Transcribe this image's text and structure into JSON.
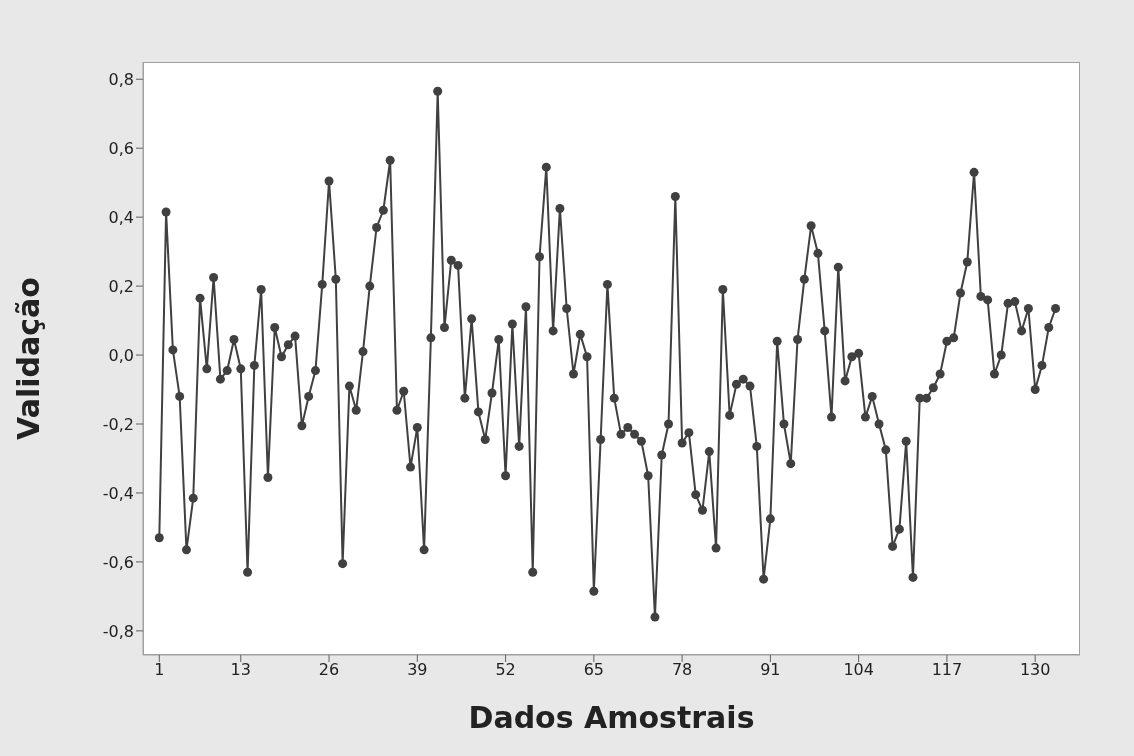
{
  "chart_data": {
    "type": "line",
    "xlabel": "Dados Amostrais",
    "ylabel": "Validação",
    "x": [
      1,
      2,
      3,
      4,
      5,
      6,
      7,
      8,
      9,
      10,
      11,
      12,
      13,
      14,
      15,
      16,
      17,
      18,
      19,
      20,
      21,
      22,
      23,
      24,
      25,
      26,
      27,
      28,
      29,
      30,
      31,
      32,
      33,
      34,
      35,
      36,
      37,
      38,
      39,
      40,
      41,
      42,
      43,
      44,
      45,
      46,
      47,
      48,
      49,
      50,
      51,
      52,
      53,
      54,
      55,
      56,
      57,
      58,
      59,
      60,
      61,
      62,
      63,
      64,
      65,
      66,
      67,
      68,
      69,
      70,
      71,
      72,
      73,
      74,
      75,
      76,
      77,
      78,
      79,
      80,
      81,
      82,
      83,
      84,
      85,
      86,
      87,
      88,
      89,
      90,
      91,
      92,
      93,
      94,
      95,
      96,
      97,
      98,
      99,
      100,
      101,
      102,
      103,
      104,
      105,
      106,
      107,
      108,
      109,
      110,
      111,
      112,
      113,
      114,
      115,
      116,
      117,
      118,
      119,
      120,
      121,
      122,
      123,
      124,
      125,
      126,
      127,
      128,
      129,
      130,
      131,
      132,
      133
    ],
    "series": [
      {
        "color": "#404040",
        "values": [
          -0.53,
          0.415,
          0.015,
          -0.12,
          -0.565,
          -0.415,
          0.165,
          -0.04,
          0.225,
          -0.07,
          -0.045,
          0.045,
          -0.04,
          -0.63,
          -0.03,
          0.19,
          -0.355,
          0.08,
          -0.005,
          0.03,
          0.055,
          -0.205,
          -0.12,
          -0.045,
          0.205,
          0.505,
          0.22,
          -0.605,
          -0.09,
          -0.16,
          0.01,
          0.2,
          0.37,
          0.42,
          0.565,
          -0.16,
          -0.105,
          -0.325,
          -0.21,
          -0.565,
          0.05,
          0.765,
          0.08,
          0.275,
          0.26,
          -0.125,
          0.105,
          -0.165,
          -0.245,
          -0.11,
          0.045,
          -0.35,
          0.09,
          -0.265,
          0.14,
          -0.63,
          0.285,
          0.545,
          0.07,
          0.425,
          0.135,
          -0.055,
          0.06,
          -0.005,
          -0.685,
          -0.245,
          0.205,
          -0.125,
          -0.23,
          -0.21,
          -0.23,
          -0.25,
          -0.35,
          -0.76,
          -0.29,
          -0.2,
          0.46,
          -0.255,
          -0.225,
          -0.405,
          -0.45,
          -0.28,
          -0.56,
          0.19,
          -0.175,
          -0.085,
          -0.07,
          -0.09,
          -0.265,
          -0.65,
          -0.475,
          0.04,
          -0.2,
          -0.315,
          0.045,
          0.22,
          0.375,
          0.295,
          0.07,
          -0.18,
          0.255,
          -0.075,
          -0.005,
          0.005,
          -0.18,
          -0.12,
          -0.2,
          -0.275,
          -0.555,
          -0.505,
          -0.25,
          -0.645,
          -0.125,
          -0.125,
          -0.095,
          -0.055,
          0.04,
          0.05,
          0.18,
          0.27,
          0.53,
          0.17,
          0.16,
          -0.055,
          0.0,
          0.15,
          0.155,
          0.07,
          0.135,
          -0.1,
          -0.03,
          0.08,
          0.135
        ]
      }
    ],
    "xlim": [
      -1.4,
      136.6
    ],
    "xticks": [
      1,
      13,
      26,
      39,
      52,
      65,
      78,
      91,
      104,
      117,
      130
    ],
    "ylim": [
      -0.87,
      0.85
    ],
    "yticks": [
      {
        "value": -0.8,
        "label": "-0,8"
      },
      {
        "value": -0.6,
        "label": "-0,6"
      },
      {
        "value": -0.4,
        "label": "-0,4"
      },
      {
        "value": -0.2,
        "label": "-0,2"
      },
      {
        "value": 0,
        "label": "0,0"
      },
      {
        "value": 0.2,
        "label": "0,2"
      },
      {
        "value": 0.4,
        "label": "0,4"
      },
      {
        "value": 0.6,
        "label": "0,6"
      },
      {
        "value": 0.8,
        "label": "0,8"
      }
    ],
    "grid": false,
    "legend": false,
    "marker": "circle",
    "line_style": "solid"
  }
}
